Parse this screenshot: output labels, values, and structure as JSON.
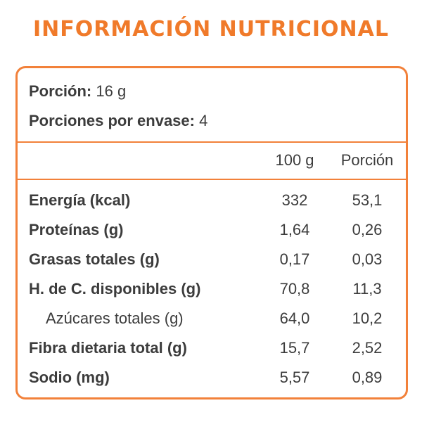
{
  "title": "INFORMACIÓN NUTRICIONAL",
  "serving": {
    "portion_label": "Porción:",
    "portion_value": "16 g",
    "servings_label": "Porciones por envase:",
    "servings_value": "4"
  },
  "columns": {
    "per100": "100 g",
    "perPortion": "Porción"
  },
  "rows": [
    {
      "label": "Energía (kcal)",
      "per100": "332",
      "portion": "53,1"
    },
    {
      "label": "Proteínas (g)",
      "per100": "1,64",
      "portion": "0,26"
    },
    {
      "label": "Grasas totales (g)",
      "per100": "0,17",
      "portion": "0,03"
    },
    {
      "label": "H. de C. disponibles (g)",
      "per100": "70,8",
      "portion": "11,3"
    },
    {
      "label": "Azúcares totales (g)",
      "per100": "64,0",
      "portion": "10,2"
    },
    {
      "label": "Fibra dietaria total (g)",
      "per100": "15,7",
      "portion": "2,52"
    },
    {
      "label": "Sodio (mg)",
      "per100": "5,57",
      "portion": "0,89"
    }
  ],
  "colors": {
    "accent": "#f07a2a",
    "text": "#3c3c3c"
  }
}
